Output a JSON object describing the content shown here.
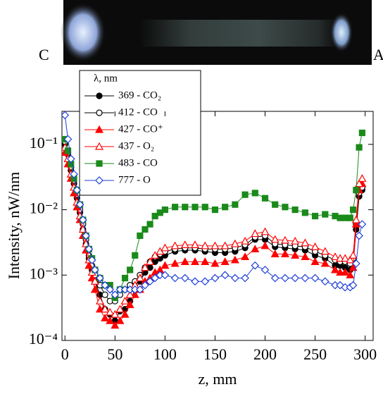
{
  "chart_data": {
    "type": "line",
    "image_labels": {
      "left": "C",
      "right": "A"
    },
    "x_label": "z, mm",
    "y_label": "Intensity, nW/nm",
    "legend_title": "λ, nm",
    "xlim": [
      -3,
      308
    ],
    "xticks": [
      0,
      50,
      100,
      150,
      200,
      250,
      300
    ],
    "ylim": [
      0.0001,
      0.32
    ],
    "log_y": true,
    "yticks": [
      {
        "value": 0.0001,
        "label": "10⁻⁴"
      },
      {
        "value": 0.001,
        "label": "10⁻³"
      },
      {
        "value": 0.01,
        "label": "10⁻²"
      },
      {
        "value": 0.1,
        "label": "10⁻¹"
      }
    ],
    "x": [
      0,
      3,
      6,
      9,
      12,
      15,
      18,
      21,
      24,
      27,
      30,
      35,
      40,
      45,
      50,
      55,
      60,
      65,
      70,
      75,
      80,
      85,
      90,
      95,
      100,
      110,
      120,
      130,
      140,
      150,
      160,
      170,
      180,
      190,
      200,
      210,
      220,
      230,
      240,
      250,
      260,
      270,
      275,
      280,
      285,
      288,
      291,
      294,
      297
    ],
    "series": [
      {
        "name": "369 - CO₂",
        "color": "#000000",
        "marker": "circle",
        "filled": true,
        "values": [
          0.1,
          0.07,
          0.04,
          0.025,
          0.015,
          0.009,
          0.005,
          0.003,
          0.0018,
          0.0012,
          0.0008,
          0.0005,
          0.0003,
          0.00025,
          0.0002,
          0.00028,
          0.0003,
          0.0004,
          0.0006,
          0.0008,
          0.0011,
          0.0013,
          0.0016,
          0.0018,
          0.002,
          0.0023,
          0.0024,
          0.0024,
          0.0023,
          0.0022,
          0.0022,
          0.0023,
          0.0026,
          0.0035,
          0.0035,
          0.0027,
          0.0026,
          0.0025,
          0.0024,
          0.002,
          0.0018,
          0.0014,
          0.0014,
          0.0013,
          0.0012,
          0.0015,
          0.005,
          0.016,
          0.02
        ]
      },
      {
        "name": "412 - CO",
        "color": "#000000",
        "marker": "circle",
        "filled": false,
        "values": [
          0.11,
          0.075,
          0.045,
          0.028,
          0.017,
          0.01,
          0.006,
          0.0035,
          0.002,
          0.0014,
          0.001,
          0.0007,
          0.0005,
          0.0004,
          0.0004,
          0.0005,
          0.0006,
          0.0007,
          0.0008,
          0.001,
          0.0013,
          0.0016,
          0.0019,
          0.0021,
          0.0023,
          0.0025,
          0.0026,
          0.0026,
          0.0025,
          0.0025,
          0.0025,
          0.0026,
          0.0029,
          0.0038,
          0.004,
          0.003,
          0.0029,
          0.0028,
          0.0027,
          0.0023,
          0.002,
          0.0017,
          0.0016,
          0.0016,
          0.0015,
          0.0018,
          0.006,
          0.018,
          0.022
        ]
      },
      {
        "name": "427 - CO⁺",
        "color": "#ff0000",
        "marker": "triangle",
        "filled": true,
        "values": [
          0.075,
          0.05,
          0.03,
          0.018,
          0.011,
          0.007,
          0.004,
          0.0024,
          0.0014,
          0.0009,
          0.0006,
          0.0003,
          0.00022,
          0.0002,
          0.00017,
          0.0002,
          0.00025,
          0.00035,
          0.0005,
          0.0006,
          0.0008,
          0.0009,
          0.0011,
          0.0012,
          0.0014,
          0.0015,
          0.0016,
          0.0016,
          0.0016,
          0.0015,
          0.0016,
          0.0017,
          0.0019,
          0.0025,
          0.0028,
          0.0021,
          0.0021,
          0.002,
          0.0019,
          0.0016,
          0.0015,
          0.0012,
          0.0011,
          0.0011,
          0.001,
          0.0013,
          0.006,
          0.02,
          0.025
        ]
      },
      {
        "name": "437 - O₂",
        "color": "#ff0000",
        "marker": "triangle",
        "filled": false,
        "values": [
          0.09,
          0.06,
          0.035,
          0.022,
          0.013,
          0.008,
          0.005,
          0.003,
          0.0017,
          0.0011,
          0.0008,
          0.0004,
          0.0003,
          0.00027,
          0.00025,
          0.0003,
          0.0004,
          0.0005,
          0.0007,
          0.0009,
          0.0013,
          0.0016,
          0.002,
          0.0023,
          0.0026,
          0.0028,
          0.0029,
          0.0029,
          0.0028,
          0.0028,
          0.0028,
          0.003,
          0.0033,
          0.0043,
          0.0046,
          0.0035,
          0.0034,
          0.0033,
          0.0031,
          0.0027,
          0.0023,
          0.0019,
          0.0018,
          0.0018,
          0.0017,
          0.002,
          0.007,
          0.025,
          0.03
        ]
      },
      {
        "name": "483 - CO",
        "color": "#1a8a1a",
        "marker": "square",
        "filled": true,
        "values": [
          0.12,
          0.08,
          0.05,
          0.03,
          0.02,
          0.012,
          0.007,
          0.004,
          0.0025,
          0.0018,
          0.0012,
          0.0009,
          0.0007,
          0.0007,
          0.00045,
          0.0006,
          0.0009,
          0.0012,
          0.002,
          0.004,
          0.005,
          0.006,
          0.008,
          0.009,
          0.01,
          0.011,
          0.011,
          0.011,
          0.011,
          0.01,
          0.011,
          0.012,
          0.017,
          0.018,
          0.015,
          0.012,
          0.011,
          0.01,
          0.009,
          0.008,
          0.0085,
          0.008,
          0.0075,
          0.0075,
          0.0075,
          0.01,
          0.02,
          0.09,
          0.15
        ]
      },
      {
        "name": "777 - O",
        "color": "#1f3fd8",
        "marker": "diamond",
        "filled": false,
        "values": [
          0.28,
          0.12,
          0.06,
          0.035,
          0.02,
          0.012,
          0.007,
          0.004,
          0.0025,
          0.0017,
          0.0012,
          0.0009,
          0.0007,
          0.0006,
          0.0005,
          0.0006,
          0.0006,
          0.0006,
          0.0006,
          0.0006,
          0.0007,
          0.0008,
          0.0009,
          0.001,
          0.001,
          0.0009,
          0.0009,
          0.0008,
          0.0008,
          0.0009,
          0.001,
          0.0009,
          0.0009,
          0.0014,
          0.0012,
          0.0009,
          0.0009,
          0.0009,
          0.0009,
          0.0009,
          0.0008,
          0.0007,
          0.0007,
          0.00065,
          0.00065,
          0.0007,
          0.0015,
          0.004,
          0.006
        ]
      }
    ]
  }
}
